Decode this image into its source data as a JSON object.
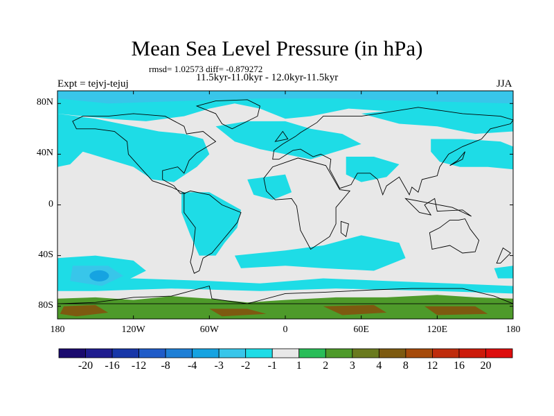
{
  "title": "Mean Sea Level Pressure (in hPa)",
  "stats": "rmsd= 1.02573 diff= -0.879272",
  "periods": "11.5kyr-11.0kyr - 12.0kyr-11.5kyr",
  "experiment": "Expt = tejvj-tejuj",
  "season": "JJA",
  "lat_labels": [
    "80N",
    "40N",
    "0",
    "40S",
    "80S"
  ],
  "lat_values": [
    80,
    40,
    0,
    -40,
    -80
  ],
  "lon_labels": [
    "180",
    "120W",
    "60W",
    "0",
    "60E",
    "120E",
    "180"
  ],
  "lon_values": [
    -180,
    -120,
    -60,
    0,
    60,
    120,
    180
  ],
  "colorbar": {
    "colors": [
      "#1a0a6e",
      "#1f1c8f",
      "#1736a8",
      "#1f5bc8",
      "#1e7fd6",
      "#16a3e1",
      "#38c6ea",
      "#1edce6",
      "#e8e8e8",
      "#29bd58",
      "#4e9a2a",
      "#6a7a1e",
      "#7d5a10",
      "#a54a0a",
      "#bf2c0c",
      "#cc1a0a",
      "#dd0d0d"
    ],
    "labels": [
      "-20",
      "-16",
      "-12",
      "-8",
      "-4",
      "-3",
      "-2",
      "-1",
      "1",
      "2",
      "3",
      "4",
      "8",
      "12",
      "16",
      "20"
    ]
  },
  "map_colors": {
    "background": "#e8e8e8",
    "negative_light": "#1edce6",
    "negative_mid": "#38c6ea",
    "negative_strong": "#16a3e1",
    "positive": "#4e9a2a",
    "positive_strong": "#7d5a10",
    "coast": "#000000"
  }
}
